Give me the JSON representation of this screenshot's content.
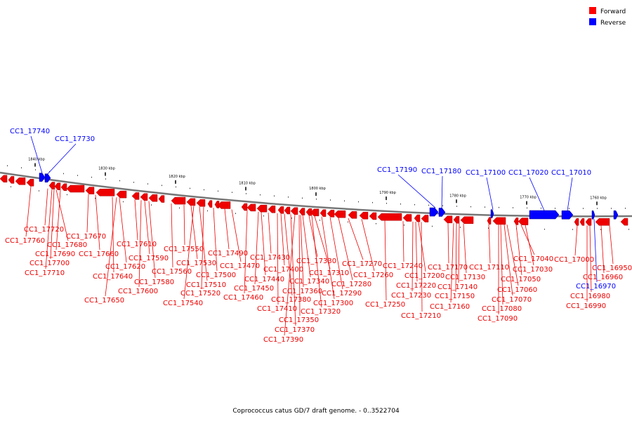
{
  "caption": "Coprococcus catus GD/7 draft genome. - 0..3522704",
  "legend": [
    {
      "label": "Forward",
      "color": "#ff0000"
    },
    {
      "label": "Reverse",
      "color": "#0000ff"
    }
  ],
  "colors": {
    "forward": "#ee0000",
    "reverse": "#0000ff",
    "axis": "#777777"
  },
  "ticks": [
    "1840 kbp",
    "1830 kbp",
    "1820 kbp",
    "1810 kbp",
    "1800 kbp",
    "1790 kbp",
    "1780 kbp",
    "1770 kbp",
    "1760 kbp"
  ],
  "genes": [
    {
      "name": "CC1_17740",
      "strand": "reverse"
    },
    {
      "name": "CC1_17730",
      "strand": "reverse"
    },
    {
      "name": "CC1_17190",
      "strand": "reverse"
    },
    {
      "name": "CC1_17180",
      "strand": "reverse"
    },
    {
      "name": "CC1_17100",
      "strand": "reverse"
    },
    {
      "name": "CC1_17020",
      "strand": "reverse"
    },
    {
      "name": "CC1_17010",
      "strand": "reverse"
    },
    {
      "name": "CC1_16970",
      "strand": "reverse"
    },
    {
      "name": "CC1_17720",
      "strand": "forward"
    },
    {
      "name": "CC1_17760",
      "strand": "forward"
    },
    {
      "name": "CC1_17680",
      "strand": "forward"
    },
    {
      "name": "CC1_17690",
      "strand": "forward"
    },
    {
      "name": "CC1_17700",
      "strand": "forward"
    },
    {
      "name": "CC1_17710",
      "strand": "forward"
    },
    {
      "name": "CC1_17670",
      "strand": "forward"
    },
    {
      "name": "CC1_17660",
      "strand": "forward"
    },
    {
      "name": "CC1_17640",
      "strand": "forward"
    },
    {
      "name": "CC1_17650",
      "strand": "forward"
    },
    {
      "name": "CC1_17620",
      "strand": "forward"
    },
    {
      "name": "CC1_17610",
      "strand": "forward"
    },
    {
      "name": "CC1_17590",
      "strand": "forward"
    },
    {
      "name": "CC1_17580",
      "strand": "forward"
    },
    {
      "name": "CC1_17600",
      "strand": "forward"
    },
    {
      "name": "CC1_17560",
      "strand": "forward"
    },
    {
      "name": "CC1_17550",
      "strand": "forward"
    },
    {
      "name": "CC1_17530",
      "strand": "forward"
    },
    {
      "name": "CC1_17510",
      "strand": "forward"
    },
    {
      "name": "CC1_17520",
      "strand": "forward"
    },
    {
      "name": "CC1_17540",
      "strand": "forward"
    },
    {
      "name": "CC1_17500",
      "strand": "forward"
    },
    {
      "name": "CC1_17490",
      "strand": "forward"
    },
    {
      "name": "CC1_17470",
      "strand": "forward"
    },
    {
      "name": "CC1_17460",
      "strand": "forward"
    },
    {
      "name": "CC1_17450",
      "strand": "forward"
    },
    {
      "name": "CC1_17440",
      "strand": "forward"
    },
    {
      "name": "CC1_17430",
      "strand": "forward"
    },
    {
      "name": "CC1_17410",
      "strand": "forward"
    },
    {
      "name": "CC1_17400",
      "strand": "forward"
    },
    {
      "name": "CC1_17380",
      "strand": "forward"
    },
    {
      "name": "CC1_17370",
      "strand": "forward"
    },
    {
      "name": "CC1_17390",
      "strand": "forward"
    },
    {
      "name": "CC1_17350",
      "strand": "forward"
    },
    {
      "name": "CC1_17360",
      "strand": "forward"
    },
    {
      "name": "CC1_17340",
      "strand": "forward"
    },
    {
      "name": "CC1_17330",
      "strand": "forward"
    },
    {
      "name": "CC1_17320",
      "strand": "forward"
    },
    {
      "name": "CC1_17310",
      "strand": "forward"
    },
    {
      "name": "CC1_17300",
      "strand": "forward"
    },
    {
      "name": "CC1_17290",
      "strand": "forward"
    },
    {
      "name": "CC1_17280",
      "strand": "forward"
    },
    {
      "name": "CC1_17270",
      "strand": "forward"
    },
    {
      "name": "CC1_17260",
      "strand": "forward"
    },
    {
      "name": "CC1_17250",
      "strand": "forward"
    },
    {
      "name": "CC1_17240",
      "strand": "forward"
    },
    {
      "name": "CC1_17230",
      "strand": "forward"
    },
    {
      "name": "CC1_17220",
      "strand": "forward"
    },
    {
      "name": "CC1_17210",
      "strand": "forward"
    },
    {
      "name": "CC1_17200",
      "strand": "forward"
    },
    {
      "name": "CC1_17170",
      "strand": "forward"
    },
    {
      "name": "CC1_17160",
      "strand": "forward"
    },
    {
      "name": "CC1_17150",
      "strand": "forward"
    },
    {
      "name": "CC1_17140",
      "strand": "forward"
    },
    {
      "name": "CC1_17130",
      "strand": "forward"
    },
    {
      "name": "CC1_17110",
      "strand": "forward"
    },
    {
      "name": "CC1_17090",
      "strand": "forward"
    },
    {
      "name": "CC1_17080",
      "strand": "forward"
    },
    {
      "name": "CC1_17070",
      "strand": "forward"
    },
    {
      "name": "CC1_17060",
      "strand": "forward"
    },
    {
      "name": "CC1_17050",
      "strand": "forward"
    },
    {
      "name": "CC1_17040",
      "strand": "forward"
    },
    {
      "name": "CC1_17030",
      "strand": "forward"
    },
    {
      "name": "CC1_17000",
      "strand": "forward"
    },
    {
      "name": "CC1_16990",
      "strand": "forward"
    },
    {
      "name": "CC1_16980",
      "strand": "forward"
    },
    {
      "name": "CC1_16960",
      "strand": "forward"
    },
    {
      "name": "CC1_16950",
      "strand": "forward"
    }
  ]
}
